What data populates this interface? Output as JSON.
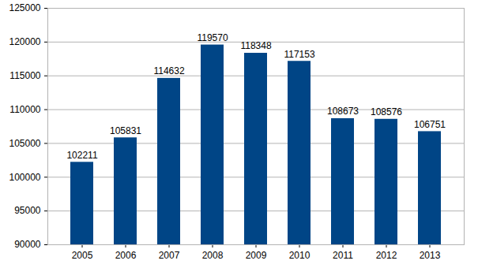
{
  "chart_data": {
    "type": "bar",
    "categories": [
      "2005",
      "2006",
      "2007",
      "2008",
      "2009",
      "2010",
      "2011",
      "2012",
      "2013"
    ],
    "values": [
      102211,
      105831,
      114632,
      119570,
      118348,
      117153,
      108673,
      108576,
      106751
    ],
    "color": "#004586",
    "ylim": [
      90000,
      125000
    ],
    "yticks": [
      90000,
      95000,
      100000,
      105000,
      110000,
      115000,
      120000,
      125000
    ],
    "grid": true,
    "data_labels": true
  }
}
